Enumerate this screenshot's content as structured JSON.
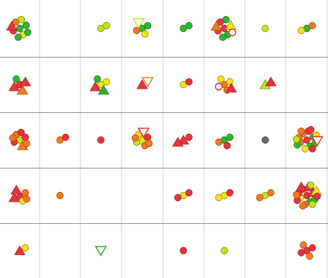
{
  "colors": {
    "background": "#ffffff",
    "row_line": "#8a8a8a",
    "col_line": "#d2d2d2",
    "red": "#e8343c",
    "red_stroke": "#a51c22",
    "orange": "#f07a22",
    "orange_stroke": "#a04a0e",
    "yellow": "#f2e21a",
    "yellow_stroke": "#9a8a0c",
    "lime": "#c8e21a",
    "lime_stroke": "#6d8a0c",
    "green": "#2fb82f",
    "green_stroke": "#1d6e1d",
    "gray": "#6a6a6a",
    "gray_stroke": "#3a3a3a"
  },
  "grid": {
    "rows": 5,
    "cols": 8,
    "cells": [
      [
        [
          {
            "shape": "circle",
            "color": "green"
          },
          {
            "shape": "circle",
            "color": "green"
          },
          {
            "shape": "circle",
            "color": "red"
          },
          {
            "shape": "circle",
            "color": "yellow"
          },
          {
            "shape": "circle",
            "color": "orange"
          },
          {
            "shape": "circle",
            "color": "green"
          },
          {
            "shape": "triangle",
            "color": "red"
          },
          {
            "shape": "circle",
            "color": "lime"
          },
          {
            "shape": "circle",
            "color": "green"
          }
        ],
        [],
        [
          {
            "shape": "circle",
            "color": "lime"
          },
          {
            "shape": "circle",
            "color": "lime"
          }
        ],
        [
          {
            "shape": "circle",
            "color": "green"
          },
          {
            "shape": "circle",
            "color": "green"
          },
          {
            "shape": "circle",
            "color": "orange"
          },
          {
            "shape": "circle",
            "color": "yellow"
          },
          {
            "shape": "triangle-down",
            "color": "lime",
            "hollow": true
          }
        ],
        [
          {
            "shape": "circle",
            "color": "green"
          },
          {
            "shape": "circle",
            "color": "green"
          }
        ],
        [
          {
            "shape": "circle",
            "color": "red"
          },
          {
            "shape": "triangle",
            "color": "yellow"
          },
          {
            "shape": "circle",
            "color": "red"
          },
          {
            "shape": "circle",
            "color": "green"
          },
          {
            "shape": "circle",
            "color": "red"
          },
          {
            "shape": "circle",
            "color": "red",
            "hollow": true
          },
          {
            "shape": "triangle",
            "color": "orange"
          },
          {
            "shape": "circle",
            "color": "green"
          },
          {
            "shape": "circle",
            "color": "green"
          }
        ],
        [
          {
            "shape": "circle",
            "color": "lime"
          }
        ],
        [
          {
            "shape": "circle",
            "color": "green"
          },
          {
            "shape": "circle",
            "color": "orange"
          },
          {
            "shape": "circle",
            "color": "yellow"
          }
        ]
      ],
      [
        [
          {
            "shape": "circle",
            "color": "red"
          },
          {
            "shape": "triangle",
            "color": "red"
          },
          {
            "shape": "triangle",
            "color": "red"
          },
          {
            "shape": "triangle",
            "color": "orange"
          },
          {
            "shape": "circle",
            "color": "green"
          }
        ],
        [],
        [
          {
            "shape": "circle",
            "color": "yellow"
          },
          {
            "shape": "circle",
            "color": "yellow"
          },
          {
            "shape": "triangle",
            "color": "red"
          },
          {
            "shape": "triangle",
            "color": "green"
          },
          {
            "shape": "circle",
            "color": "green"
          }
        ],
        [
          {
            "shape": "triangle",
            "color": "red"
          },
          {
            "shape": "triangle-down",
            "color": "orange",
            "hollow": true
          }
        ],
        [
          {
            "shape": "circle",
            "color": "yellow"
          },
          {
            "shape": "circle",
            "color": "red"
          }
        ],
        [
          {
            "shape": "circle",
            "color": "orange"
          },
          {
            "shape": "circle",
            "color": "yellow"
          },
          {
            "shape": "circle",
            "color": "red",
            "hollow": true
          },
          {
            "shape": "circle",
            "color": "orange"
          },
          {
            "shape": "circle",
            "color": "yellow"
          },
          {
            "shape": "triangle",
            "color": "red"
          }
        ],
        [
          {
            "shape": "triangle",
            "color": "lime"
          },
          {
            "shape": "triangle",
            "color": "red"
          }
        ],
        []
      ],
      [
        [
          {
            "shape": "circle",
            "color": "lime"
          },
          {
            "shape": "circle",
            "color": "red"
          },
          {
            "shape": "circle",
            "color": "red"
          },
          {
            "shape": "triangle",
            "color": "orange"
          },
          {
            "shape": "circle",
            "color": "orange"
          },
          {
            "shape": "circle",
            "color": "orange"
          },
          {
            "shape": "circle",
            "color": "orange"
          },
          {
            "shape": "circle",
            "color": "red"
          }
        ],
        [
          {
            "shape": "circle",
            "color": "orange"
          },
          {
            "shape": "circle",
            "color": "red"
          }
        ],
        [
          {
            "shape": "circle",
            "color": "red"
          }
        ],
        [
          {
            "shape": "triangle",
            "color": "yellow"
          },
          {
            "shape": "circle",
            "color": "red"
          },
          {
            "shape": "circle",
            "color": "lime"
          },
          {
            "shape": "circle",
            "color": "orange"
          },
          {
            "shape": "circle",
            "color": "yellow"
          },
          {
            "shape": "circle",
            "color": "orange"
          },
          {
            "shape": "circle",
            "color": "orange"
          },
          {
            "shape": "triangle-down",
            "color": "red",
            "hollow": true
          }
        ],
        [
          {
            "shape": "triangle",
            "color": "red"
          },
          {
            "shape": "circle",
            "color": "red"
          },
          {
            "shape": "triangle",
            "color": "red"
          }
        ],
        [
          {
            "shape": "circle",
            "color": "green"
          },
          {
            "shape": "circle",
            "color": "green"
          },
          {
            "shape": "circle",
            "color": "orange"
          },
          {
            "shape": "circle",
            "color": "red"
          }
        ],
        [
          {
            "shape": "circle",
            "color": "gray"
          }
        ],
        [
          {
            "shape": "circle",
            "color": "red"
          },
          {
            "shape": "circle",
            "color": "green"
          },
          {
            "shape": "circle",
            "color": "orange"
          },
          {
            "shape": "circle",
            "color": "green"
          },
          {
            "shape": "circle",
            "color": "orange"
          },
          {
            "shape": "circle",
            "color": "green"
          },
          {
            "shape": "circle",
            "color": "orange"
          },
          {
            "shape": "circle",
            "color": "red"
          },
          {
            "shape": "circle",
            "color": "yellow"
          },
          {
            "shape": "circle",
            "color": "yellow"
          },
          {
            "shape": "circle",
            "color": "green"
          },
          {
            "shape": "circle",
            "color": "red"
          },
          {
            "shape": "circle",
            "color": "orange"
          },
          {
            "shape": "triangle-down",
            "color": "red",
            "hollow": true
          },
          {
            "shape": "circle",
            "color": "lime"
          },
          {
            "shape": "circle",
            "color": "red"
          }
        ]
      ],
      [
        [
          {
            "shape": "triangle",
            "color": "red"
          },
          {
            "shape": "circle",
            "color": "orange"
          },
          {
            "shape": "triangle",
            "color": "red"
          },
          {
            "shape": "circle",
            "color": "yellow"
          },
          {
            "shape": "triangle",
            "color": "red"
          },
          {
            "shape": "circle",
            "color": "orange"
          }
        ],
        [
          {
            "shape": "circle",
            "color": "orange"
          }
        ],
        [],
        [],
        [
          {
            "shape": "circle",
            "color": "yellow"
          },
          {
            "shape": "circle",
            "color": "red"
          },
          {
            "shape": "circle",
            "color": "red"
          }
        ],
        [
          {
            "shape": "circle",
            "color": "yellow"
          },
          {
            "shape": "circle",
            "color": "red"
          },
          {
            "shape": "circle",
            "color": "yellow"
          }
        ],
        [
          {
            "shape": "circle",
            "color": "lime"
          },
          {
            "shape": "circle",
            "color": "orange"
          },
          {
            "shape": "circle",
            "color": "orange"
          }
        ],
        [
          {
            "shape": "circle",
            "color": "red"
          },
          {
            "shape": "triangle",
            "color": "red"
          },
          {
            "shape": "circle",
            "color": "yellow"
          },
          {
            "shape": "circle",
            "color": "green"
          },
          {
            "shape": "circle",
            "color": "red"
          },
          {
            "shape": "circle",
            "color": "green"
          },
          {
            "shape": "circle",
            "color": "red"
          },
          {
            "shape": "triangle",
            "color": "red"
          },
          {
            "shape": "circle",
            "color": "orange"
          },
          {
            "shape": "triangle",
            "color": "yellow"
          },
          {
            "shape": "circle",
            "color": "red"
          },
          {
            "shape": "circle",
            "color": "lime"
          },
          {
            "shape": "triangle",
            "color": "red"
          },
          {
            "shape": "circle",
            "color": "red"
          },
          {
            "shape": "circle",
            "color": "orange"
          },
          {
            "shape": "circle",
            "color": "lime"
          },
          {
            "shape": "circle",
            "color": "orange"
          }
        ]
      ],
      [
        [
          {
            "shape": "triangle",
            "color": "red"
          },
          {
            "shape": "circle",
            "color": "yellow"
          }
        ],
        [],
        [
          {
            "shape": "triangle-down",
            "color": "green",
            "hollow": true
          }
        ],
        [],
        [
          {
            "shape": "circle",
            "color": "red"
          }
        ],
        [
          {
            "shape": "circle",
            "color": "lime"
          }
        ],
        [],
        [
          {
            "shape": "circle",
            "color": "red"
          },
          {
            "shape": "circle",
            "color": "red"
          },
          {
            "shape": "circle",
            "color": "red"
          },
          {
            "shape": "circle",
            "color": "orange"
          },
          {
            "shape": "circle",
            "color": "orange"
          }
        ]
      ]
    ]
  }
}
